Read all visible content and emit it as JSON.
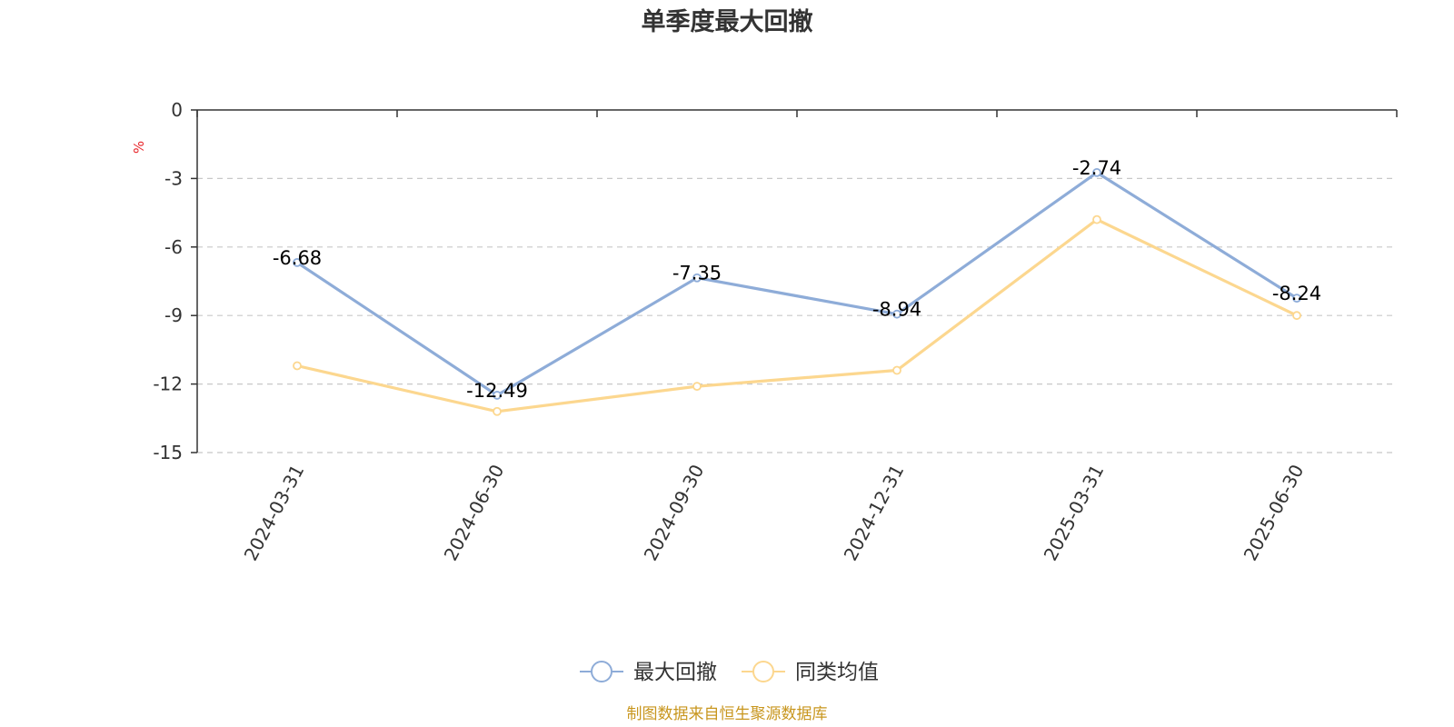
{
  "chart_data": {
    "type": "line",
    "title": "单季度最大回撤",
    "ylabel": "%",
    "xlabel": "",
    "categories": [
      "2024-03-31",
      "2024-06-30",
      "2024-09-30",
      "2024-12-31",
      "2025-03-31",
      "2025-06-30"
    ],
    "series": [
      {
        "name": "最大回撤",
        "color": "#8eacd8",
        "values": [
          -6.68,
          -12.49,
          -7.35,
          -8.94,
          -2.74,
          -8.24
        ],
        "labels": [
          "-6.68",
          "-12.49",
          "-7.35",
          "-8.94",
          "-2.74",
          "-8.24"
        ]
      },
      {
        "name": "同类均值",
        "color": "#fcd78f",
        "values": [
          -11.2,
          -13.2,
          -12.1,
          -11.4,
          -4.8,
          -9.0
        ]
      }
    ],
    "ylim": [
      -15,
      0
    ],
    "yticks": [
      0,
      -3,
      -6,
      -9,
      -12,
      -15
    ],
    "ytick_labels": [
      "0",
      "-3",
      "-6",
      "-9",
      "-12",
      "-15"
    ],
    "grid": true,
    "legend_position": "bottom-center",
    "source": "制图数据来自恒生聚源数据库"
  }
}
